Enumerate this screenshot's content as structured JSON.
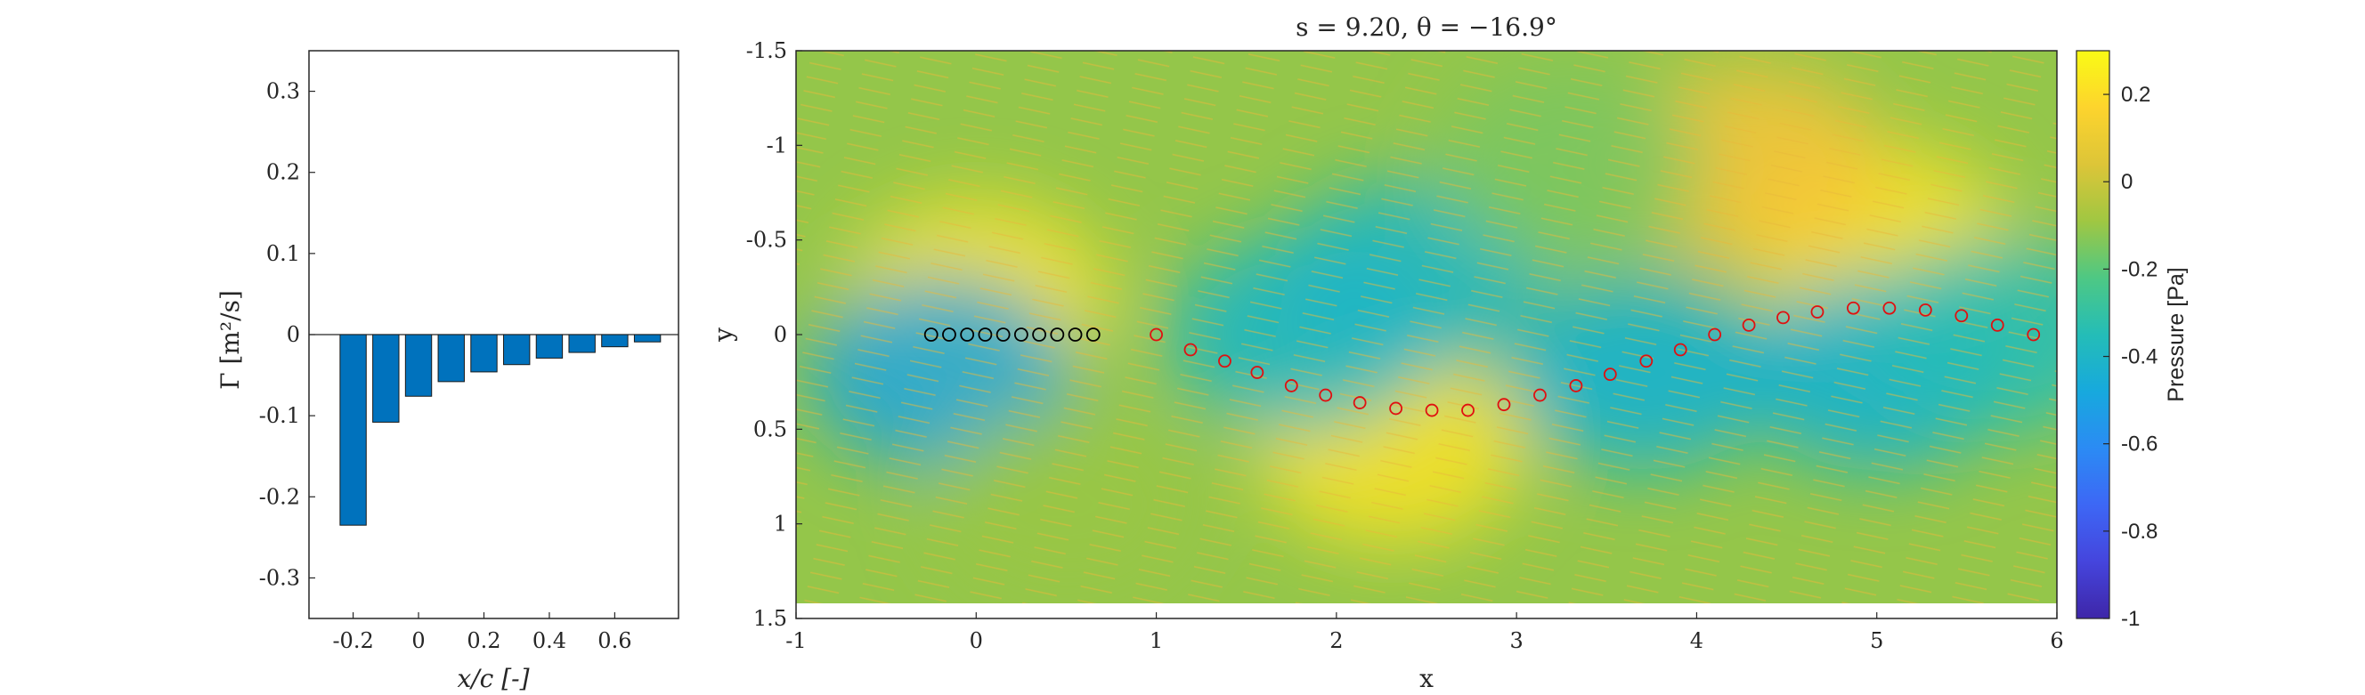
{
  "figure": {
    "background": "#ffffff"
  },
  "chart_data": [
    {
      "type": "bar",
      "x": [
        -0.2,
        -0.1,
        0.0,
        0.1,
        0.2,
        0.3,
        0.4,
        0.5,
        0.6,
        0.7
      ],
      "values": [
        -0.235,
        -0.108,
        -0.076,
        -0.058,
        -0.046,
        -0.037,
        -0.029,
        -0.022,
        -0.015,
        -0.009
      ],
      "bar_color": "#0072BD",
      "xlabel": "x/c [-]",
      "ylabel": "Γ [m²/s]",
      "xlim": [
        -0.335,
        0.795
      ],
      "ylim": [
        -0.35,
        0.35
      ],
      "xticks": [
        -0.2,
        0,
        0.2,
        0.4,
        0.6
      ],
      "xtick_labels": [
        "-0.2",
        "0",
        "0.2",
        "0.4",
        "0.6"
      ],
      "yticks": [
        0.3,
        0.2,
        0.1,
        0,
        -0.1,
        -0.2,
        -0.3
      ],
      "ytick_labels": [
        "0.3",
        "0.2",
        "0.1",
        "0",
        "-0.1",
        "-0.2",
        "-0.3"
      ],
      "grid": false
    },
    {
      "type": "heatmap",
      "title": "s = 9.20, θ = −16.9°",
      "xlabel": "x",
      "ylabel": "y",
      "xlim": [
        -1,
        6
      ],
      "ylim": [
        -1.5,
        1.5
      ],
      "y_reversed": true,
      "xticks": [
        -1,
        0,
        1,
        2,
        3,
        4,
        5,
        6
      ],
      "xtick_labels": [
        "-1",
        "0",
        "1",
        "2",
        "3",
        "4",
        "5",
        "6"
      ],
      "yticks": [
        -1.5,
        -1,
        -0.5,
        0,
        0.5,
        1,
        1.5
      ],
      "ytick_labels": [
        "-1.5",
        "-1",
        "-0.5",
        "0",
        "0.5",
        "1",
        "1.5"
      ],
      "colorbar": {
        "label": "Pressure [Pa]",
        "range": [
          -1,
          0.3
        ],
        "ticks": [
          0.2,
          0,
          -0.2,
          -0.4,
          -0.6,
          -0.8,
          -1
        ],
        "tick_labels": [
          "0.2",
          "0",
          "-0.2",
          "-0.4",
          "-0.6",
          "-0.8",
          "-1"
        ],
        "colormap": "parula"
      },
      "pressure_features": [
        {
          "x": 0.0,
          "y": -0.2,
          "value": 0.22
        },
        {
          "x": -0.2,
          "y": 0.2,
          "value": -0.5
        },
        {
          "x": 2.3,
          "y": 0.6,
          "value": 0.22
        },
        {
          "x": 2.4,
          "y": -0.3,
          "value": -0.4
        },
        {
          "x": 1.8,
          "y": 0.0,
          "value": -0.4
        },
        {
          "x": 3.7,
          "y": 0.2,
          "value": -0.45
        },
        {
          "x": 5.0,
          "y": -0.5,
          "value": 0.22
        },
        {
          "x": 4.3,
          "y": -0.9,
          "value": 0.1
        },
        {
          "x": 5.0,
          "y": 0.2,
          "value": -0.45
        },
        {
          "x": 5.7,
          "y": 0.0,
          "value": -0.35
        },
        {
          "x": 0.5,
          "y": 0.9,
          "value": -0.1
        },
        {
          "x": 3.3,
          "y": -0.9,
          "value": -0.15
        }
      ],
      "bound_vortices": {
        "marker_color": "#000000",
        "x": [
          -0.25,
          -0.15,
          -0.05,
          0.05,
          0.15,
          0.25,
          0.35,
          0.45,
          0.55,
          0.65
        ],
        "y": [
          0,
          0,
          0,
          0,
          0,
          0,
          0,
          0,
          0,
          0
        ]
      },
      "wake_vortices": {
        "marker_color": "#E01010",
        "x": [
          1.0,
          1.19,
          1.38,
          1.56,
          1.75,
          1.94,
          2.13,
          2.33,
          2.53,
          2.73,
          2.93,
          3.13,
          3.33,
          3.52,
          3.72,
          3.91,
          4.1,
          4.29,
          4.48,
          4.67,
          4.87,
          5.07,
          5.27,
          5.47,
          5.67,
          5.87
        ],
        "y": [
          0.0,
          0.08,
          0.14,
          0.2,
          0.27,
          0.32,
          0.36,
          0.39,
          0.4,
          0.4,
          0.37,
          0.32,
          0.27,
          0.21,
          0.14,
          0.08,
          0.0,
          -0.05,
          -0.09,
          -0.12,
          -0.14,
          -0.14,
          -0.13,
          -0.1,
          -0.05,
          0.0
        ]
      }
    }
  ]
}
